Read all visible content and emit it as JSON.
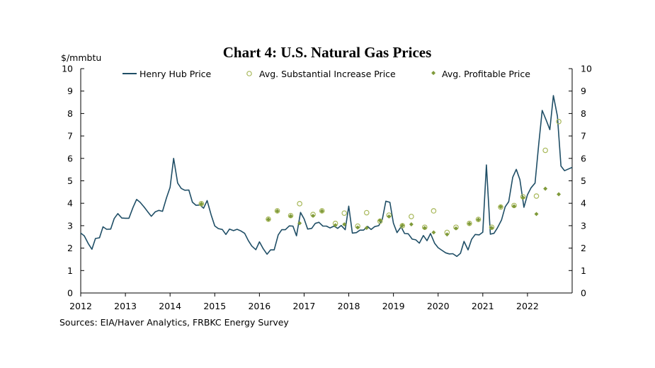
{
  "chart_data": {
    "type": "line",
    "title": "Chart 4: U.S. Natural Gas Prices",
    "ylabel": "$/mmbtu",
    "source": "Sources: EIA/Haver Analytics, FRBKC Energy Survey",
    "ylim": [
      0,
      10
    ],
    "xlim": [
      2012.0,
      2023.0
    ],
    "y_ticks": [
      "0",
      "1",
      "2",
      "3",
      "4",
      "5",
      "6",
      "7",
      "8",
      "9",
      "10"
    ],
    "x_ticks": [
      "2012",
      "2013",
      "2014",
      "2015",
      "2016",
      "2017",
      "2018",
      "2019",
      "2020",
      "2021",
      "2022"
    ],
    "legend_position": "top",
    "grid": false,
    "colors": {
      "line": "#1f4e66",
      "substantial": "#a8b85a",
      "profitable": "#7f9a3a",
      "axis": "#000000"
    },
    "series": [
      {
        "name": "Henry Hub Price",
        "kind": "line",
        "x": [
          2012.0,
          2012.08,
          2012.17,
          2012.25,
          2012.33,
          2012.42,
          2012.5,
          2012.58,
          2012.67,
          2012.75,
          2012.83,
          2012.92,
          2013.0,
          2013.08,
          2013.17,
          2013.25,
          2013.33,
          2013.42,
          2013.5,
          2013.58,
          2013.67,
          2013.75,
          2013.83,
          2013.92,
          2014.0,
          2014.08,
          2014.17,
          2014.25,
          2014.33,
          2014.42,
          2014.5,
          2014.58,
          2014.67,
          2014.75,
          2014.83,
          2014.92,
          2015.0,
          2015.08,
          2015.17,
          2015.25,
          2015.33,
          2015.42,
          2015.5,
          2015.58,
          2015.67,
          2015.75,
          2015.83,
          2015.92,
          2016.0,
          2016.08,
          2016.17,
          2016.25,
          2016.33,
          2016.42,
          2016.5,
          2016.58,
          2016.67,
          2016.75,
          2016.83,
          2016.92,
          2017.0,
          2017.08,
          2017.17,
          2017.25,
          2017.33,
          2017.42,
          2017.5,
          2017.58,
          2017.67,
          2017.75,
          2017.83,
          2017.92,
          2018.0,
          2018.08,
          2018.17,
          2018.25,
          2018.33,
          2018.42,
          2018.5,
          2018.58,
          2018.67,
          2018.75,
          2018.83,
          2018.92,
          2019.0,
          2019.08,
          2019.17,
          2019.25,
          2019.33,
          2019.42,
          2019.5,
          2019.58,
          2019.67,
          2019.75,
          2019.83,
          2019.92,
          2020.0,
          2020.08,
          2020.17,
          2020.25,
          2020.33,
          2020.42,
          2020.5,
          2020.58,
          2020.67,
          2020.75,
          2020.83,
          2020.92,
          2021.0,
          2021.08,
          2021.17,
          2021.25,
          2021.33,
          2021.42,
          2021.5,
          2021.58,
          2021.67,
          2021.75,
          2021.83,
          2021.92,
          2022.0,
          2022.08,
          2022.17,
          2022.25,
          2022.33,
          2022.42,
          2022.5,
          2022.58,
          2022.67,
          2022.75,
          2022.83,
          2022.92,
          2023.0
        ],
        "y": [
          2.67,
          2.55,
          2.2,
          1.95,
          2.43,
          2.46,
          2.95,
          2.84,
          2.85,
          3.32,
          3.54,
          3.34,
          3.33,
          3.33,
          3.81,
          4.17,
          4.04,
          3.83,
          3.62,
          3.42,
          3.62,
          3.68,
          3.64,
          4.24,
          4.71,
          6.0,
          4.9,
          4.66,
          4.58,
          4.59,
          4.05,
          3.91,
          3.92,
          3.78,
          4.12,
          3.48,
          2.99,
          2.87,
          2.83,
          2.61,
          2.85,
          2.78,
          2.84,
          2.77,
          2.66,
          2.34,
          2.09,
          1.93,
          2.28,
          1.99,
          1.73,
          1.92,
          1.92,
          2.59,
          2.82,
          2.82,
          2.99,
          2.98,
          2.55,
          3.59,
          3.3,
          2.85,
          2.88,
          3.1,
          3.15,
          2.98,
          2.98,
          2.9,
          2.98,
          2.88,
          3.01,
          2.82,
          3.87,
          2.67,
          2.69,
          2.8,
          2.8,
          2.97,
          2.83,
          2.96,
          3.0,
          3.28,
          4.09,
          4.04,
          3.11,
          2.69,
          2.95,
          2.65,
          2.64,
          2.4,
          2.37,
          2.22,
          2.56,
          2.33,
          2.65,
          2.22,
          2.02,
          1.91,
          1.79,
          1.74,
          1.75,
          1.63,
          1.77,
          2.3,
          1.92,
          2.39,
          2.61,
          2.59,
          2.71,
          5.71,
          2.62,
          2.66,
          2.91,
          3.26,
          3.84,
          4.07,
          5.16,
          5.51,
          5.05,
          3.82,
          4.38,
          4.69,
          4.9,
          6.6,
          8.14,
          7.7,
          7.28,
          8.8,
          7.88,
          5.66,
          5.45,
          5.53,
          5.6
        ]
      },
      {
        "name": "Avg. Substantial Increase Price",
        "kind": "markers",
        "marker": "circle",
        "x": [
          2014.7,
          2016.2,
          2016.4,
          2016.7,
          2016.9,
          2017.2,
          2017.4,
          2017.7,
          2017.9,
          2018.2,
          2018.4,
          2018.7,
          2018.9,
          2019.2,
          2019.4,
          2019.7,
          2019.9,
          2020.2,
          2020.4,
          2020.7,
          2020.9,
          2021.2,
          2021.4,
          2021.7,
          2021.9,
          2022.2,
          2022.4,
          2022.7
        ],
        "y": [
          3.98,
          3.29,
          3.66,
          3.45,
          3.98,
          3.5,
          3.66,
          3.1,
          3.56,
          2.98,
          3.58,
          3.2,
          3.47,
          3.0,
          3.41,
          2.93,
          3.66,
          2.7,
          2.93,
          3.1,
          3.28,
          2.93,
          3.83,
          3.9,
          4.29,
          4.32,
          6.36,
          7.64
        ]
      },
      {
        "name": "Avg. Profitable Price",
        "kind": "markers",
        "marker": "diamond",
        "x": [
          2014.7,
          2016.2,
          2016.4,
          2016.7,
          2016.9,
          2017.2,
          2017.4,
          2017.7,
          2017.9,
          2018.2,
          2018.4,
          2018.7,
          2018.9,
          2019.2,
          2019.4,
          2019.7,
          2019.9,
          2020.2,
          2020.4,
          2020.7,
          2020.9,
          2021.2,
          2021.4,
          2021.7,
          2021.9,
          2022.2,
          2022.4,
          2022.7
        ],
        "y": [
          3.97,
          3.28,
          3.65,
          3.43,
          3.11,
          3.44,
          3.65,
          3.02,
          3.06,
          2.92,
          2.9,
          3.23,
          3.41,
          3.01,
          3.06,
          2.9,
          2.7,
          2.61,
          2.88,
          3.09,
          3.27,
          2.9,
          3.84,
          3.87,
          4.25,
          3.52,
          4.65,
          4.4
        ]
      }
    ]
  }
}
